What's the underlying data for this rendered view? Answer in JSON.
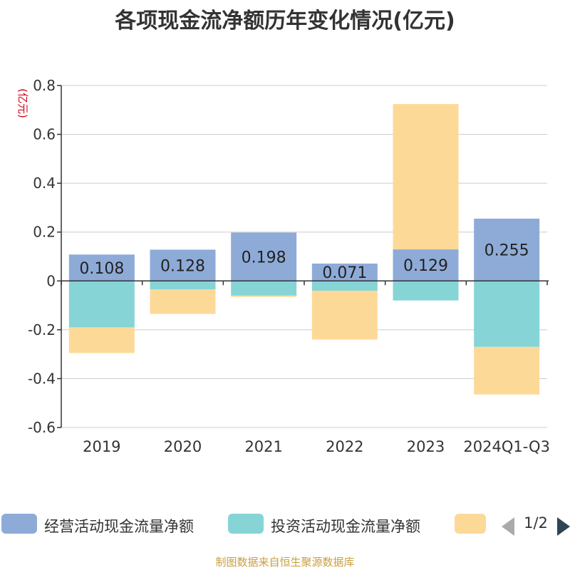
{
  "chart_data": {
    "type": "bar",
    "stacked": true,
    "title": "各项现金流净额历年变化情况(亿元)",
    "ylabel": "(亿元)",
    "ylim": [
      -0.6,
      0.8
    ],
    "yticks": [
      0.8,
      0.6,
      0.4,
      0.2,
      0,
      -0.2,
      -0.4,
      -0.6
    ],
    "ytick_labels": [
      "0.8",
      "0.6",
      "0.4",
      "0.2",
      "0",
      "-0.2",
      "-0.4",
      "-0.6"
    ],
    "grid": true,
    "categories": [
      "2019",
      "2020",
      "2021",
      "2022",
      "2023",
      "2024Q1-Q3"
    ],
    "series": [
      {
        "name": "经营活动现金流量净额",
        "color": "#8eabd8",
        "values": [
          0.108,
          0.128,
          0.198,
          0.071,
          0.129,
          0.255
        ],
        "labels": [
          "0.108",
          "0.128",
          "0.198",
          "0.071",
          "0.129",
          "0.255"
        ]
      },
      {
        "name": "投资活动现金流量净额",
        "color": "#86d4d6",
        "values": [
          -0.19,
          -0.035,
          -0.06,
          -0.04,
          -0.08,
          -0.27
        ]
      },
      {
        "name": "",
        "color": "#fdd998",
        "values": [
          -0.105,
          -0.1,
          -0.005,
          -0.2,
          0.595,
          -0.195
        ]
      }
    ]
  },
  "legend": {
    "page": "1/2",
    "placement": "bottom"
  },
  "source": "制图数据来自恒生聚源数据库"
}
